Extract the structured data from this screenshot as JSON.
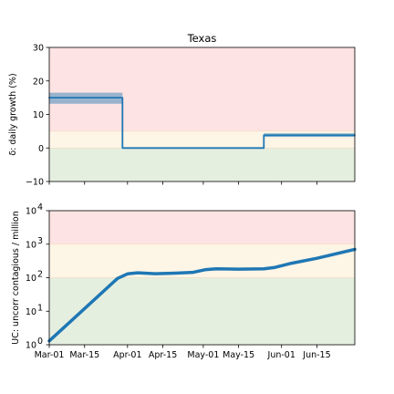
{
  "chart_data": [
    {
      "type": "line",
      "title": "Texas",
      "ylabel": "δ: daily growth (%)",
      "ylim": [
        -10,
        30
      ],
      "yticks": [
        -10,
        0,
        10,
        20,
        30
      ],
      "ytick_labels": [
        "−10",
        "0",
        "10",
        "20",
        "30"
      ],
      "xlim": [
        "2020-03-01",
        "2020-06-30"
      ],
      "bands": [
        {
          "from": -10,
          "to": 0,
          "color": "#e5efe0"
        },
        {
          "from": 0,
          "to": 5,
          "color": "#fdf5e6"
        },
        {
          "from": 5,
          "to": 30,
          "color": "#fde3e3"
        }
      ],
      "series": [
        {
          "color": "#1f77b4",
          "x": [
            "2020-03-01",
            "2020-03-30",
            "2020-03-30",
            "2020-05-25",
            "2020-05-25",
            "2020-06-30"
          ],
          "y": [
            15,
            15,
            0,
            0,
            3.8,
            3.8
          ],
          "band": [
            {
              "x": [
                "2020-03-01",
                "2020-03-30"
              ],
              "lo": 13.2,
              "hi": 16.5
            },
            {
              "x": [
                "2020-05-25",
                "2020-06-30"
              ],
              "lo": 3.3,
              "hi": 4.4
            }
          ]
        }
      ]
    },
    {
      "type": "line",
      "ylabel": "UC: uncorr contagious / million",
      "yscale": "log",
      "ylim": [
        1,
        10000
      ],
      "yticks": [
        1,
        10,
        100,
        1000,
        10000
      ],
      "ytick_labels": [
        {
          "base": "10",
          "exp": "0"
        },
        {
          "base": "10",
          "exp": "1"
        },
        {
          "base": "10",
          "exp": "2"
        },
        {
          "base": "10",
          "exp": "3"
        },
        {
          "base": "10",
          "exp": "4"
        }
      ],
      "xlim": [
        "2020-03-01",
        "2020-06-30"
      ],
      "xticks": [
        "2020-03-01",
        "2020-03-15",
        "2020-04-01",
        "2020-04-15",
        "2020-05-01",
        "2020-05-15",
        "2020-06-01",
        "2020-06-15"
      ],
      "xtick_labels": [
        "Mar-01",
        "Mar-15",
        "Apr-01",
        "Apr-15",
        "May-01",
        "May-15",
        "Jun-01",
        "Jun-15"
      ],
      "bands": [
        {
          "from": 1,
          "to": 100,
          "color": "#e5efe0"
        },
        {
          "from": 100,
          "to": 1000,
          "color": "#fdf5e6"
        },
        {
          "from": 1000,
          "to": 10000,
          "color": "#fde3e3"
        }
      ],
      "series": [
        {
          "color": "#1f77b4",
          "x": [
            "2020-03-01",
            "2020-03-15",
            "2020-03-28",
            "2020-04-01",
            "2020-04-05",
            "2020-04-12",
            "2020-04-20",
            "2020-04-27",
            "2020-05-02",
            "2020-05-06",
            "2020-05-15",
            "2020-05-25",
            "2020-05-29",
            "2020-06-05",
            "2020-06-15",
            "2020-06-30"
          ],
          "y": [
            1.3,
            12,
            95,
            130,
            140,
            132,
            137,
            145,
            175,
            185,
            180,
            185,
            200,
            270,
            380,
            700
          ]
        }
      ]
    }
  ]
}
